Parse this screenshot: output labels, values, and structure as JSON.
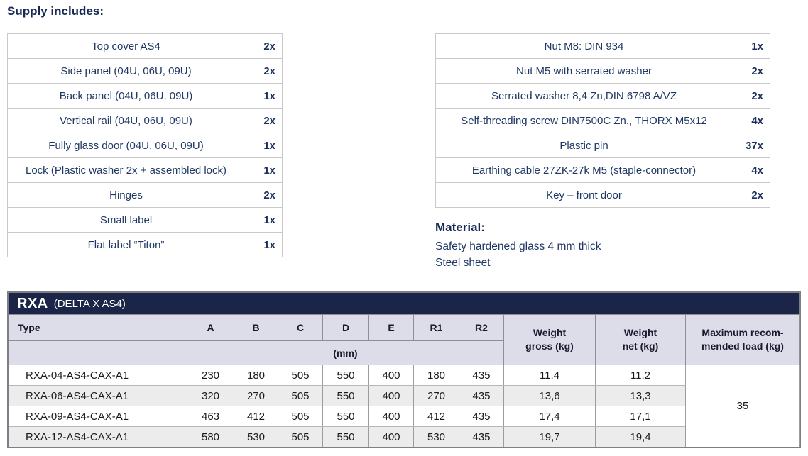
{
  "supply": {
    "heading": "Supply includes:"
  },
  "supply_left": {
    "items": [
      {
        "label": "Top cover AS4",
        "qty": "2x"
      },
      {
        "label": "Side panel (04U, 06U, 09U)",
        "qty": "2x"
      },
      {
        "label": "Back panel (04U, 06U, 09U)",
        "qty": "1x"
      },
      {
        "label": "Vertical rail (04U, 06U, 09U)",
        "qty": "2x"
      },
      {
        "label": "Fully glass door (04U, 06U, 09U)",
        "qty": "1x"
      },
      {
        "label": "Lock (Plastic washer 2x + assembled lock)",
        "qty": "1x"
      },
      {
        "label": "Hinges",
        "qty": "2x"
      },
      {
        "label": "Small label",
        "qty": "1x"
      },
      {
        "label": "Flat label “Titon”",
        "qty": "1x"
      }
    ]
  },
  "supply_right": {
    "items": [
      {
        "label": "Nut M8: DIN 934",
        "qty": "1x"
      },
      {
        "label": "Nut M5 with serrated washer",
        "qty": "2x"
      },
      {
        "label": "Serrated washer 8,4 Zn,DIN 6798 A/VZ",
        "qty": "2x"
      },
      {
        "label": "Self-threading screw DIN7500C Zn., THORX M5x12",
        "qty": "4x"
      },
      {
        "label": "Plastic pin",
        "qty": "37x"
      },
      {
        "label": "Earthing cable 27ZK-27k M5 (staple-connector)",
        "qty": "4x"
      },
      {
        "label": "Key – front door",
        "qty": "2x"
      }
    ]
  },
  "material": {
    "heading": "Material:",
    "lines": [
      "Safety hardened glass 4 mm thick",
      "Steel sheet"
    ]
  },
  "spec_table": {
    "title": "RXA",
    "subtitle": "(DELTA X AS4)",
    "col_type": "Type",
    "dim_columns": [
      "A",
      "B",
      "C",
      "D",
      "E",
      "R1",
      "R2"
    ],
    "unit_label": "(mm)",
    "col_weight_gross": "Weight\ngross (kg)",
    "col_weight_net": "Weight\nnet (kg)",
    "col_max_load": "Maximum recom-\nmended load (kg)",
    "rows": [
      {
        "type": "RXA-04-AS4-CAX-A1",
        "A": "230",
        "B": "180",
        "C": "505",
        "D": "550",
        "E": "400",
        "R1": "180",
        "R2": "435",
        "gross": "11,4",
        "net": "11,2"
      },
      {
        "type": "RXA-06-AS4-CAX-A1",
        "A": "320",
        "B": "270",
        "C": "505",
        "D": "550",
        "E": "400",
        "R1": "270",
        "R2": "435",
        "gross": "13,6",
        "net": "13,3"
      },
      {
        "type": "RXA-09-AS4-CAX-A1",
        "A": "463",
        "B": "412",
        "C": "505",
        "D": "550",
        "E": "400",
        "R1": "412",
        "R2": "435",
        "gross": "17,4",
        "net": "17,1"
      },
      {
        "type": "RXA-12-AS4-CAX-A1",
        "A": "580",
        "B": "530",
        "C": "505",
        "D": "550",
        "E": "400",
        "R1": "530",
        "R2": "435",
        "gross": "19,7",
        "net": "19,4"
      }
    ],
    "max_load": "35"
  },
  "colors": {
    "title_band": "#1b2547",
    "header_bg": "#dcdde8",
    "supply_text": "#1f3864",
    "heading_text": "#172b54",
    "alt_row": "#ececec",
    "border_light": "#c9c9c9",
    "border_dark": "#7e7e86"
  }
}
